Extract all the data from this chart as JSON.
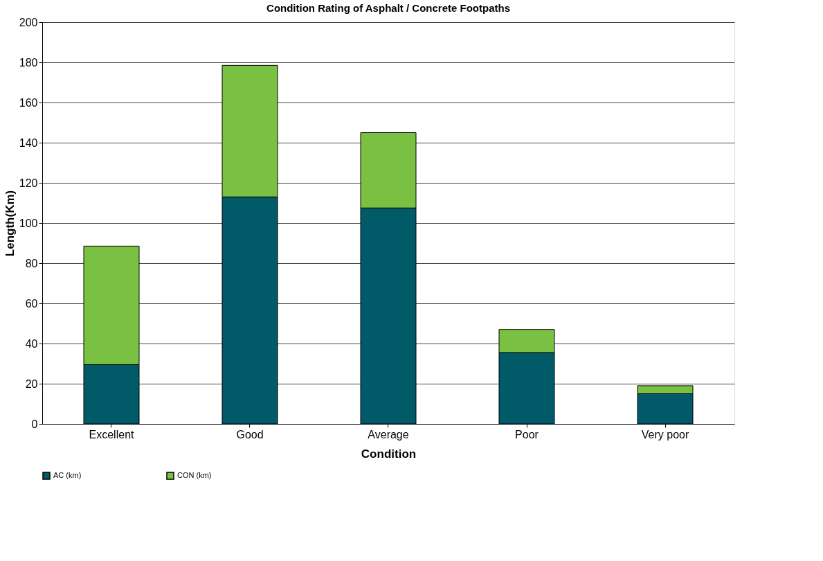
{
  "chart_data": {
    "type": "bar",
    "title": "Condition Rating of Asphalt / Concrete Footpaths",
    "xlabel": "Condition",
    "ylabel": "Length(Km)",
    "categories": [
      "Excellent",
      "Good",
      "Average",
      "Poor",
      "Very poor"
    ],
    "stacked": true,
    "series": [
      {
        "name": "AC (km)",
        "color": "#005a68",
        "values": [
          29.5,
          113,
          107.5,
          35.5,
          15
        ]
      },
      {
        "name": "CON (km)",
        "color": "#7ac143",
        "values": [
          59,
          65.5,
          37.5,
          11.5,
          4
        ]
      }
    ],
    "ylim": [
      0,
      200
    ],
    "yticks": [
      0,
      20,
      40,
      60,
      80,
      100,
      120,
      140,
      160,
      180,
      200
    ],
    "grid": "y",
    "legend": "bottom"
  }
}
